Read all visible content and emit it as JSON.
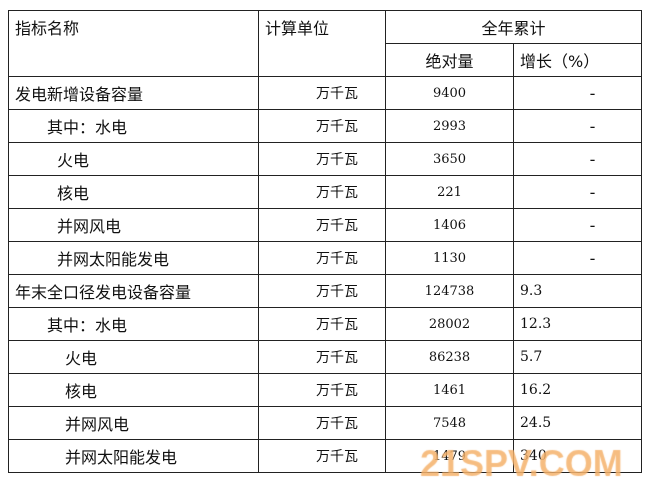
{
  "header": {
    "name": "指标名称",
    "unit": "计算单位",
    "total": "全年累计",
    "absolute": "绝对量",
    "growth": "增长（%）"
  },
  "rows": [
    {
      "name": "发电新增设备容量",
      "indent": 0,
      "unit": "万千瓦",
      "value": "9400",
      "growth": "-"
    },
    {
      "name": "其中：水电",
      "indent": 1,
      "unit": "万千瓦",
      "value": "2993",
      "growth": "-"
    },
    {
      "name": "火电",
      "indent": 2,
      "unit": "万千瓦",
      "value": "3650",
      "growth": "-"
    },
    {
      "name": "核电",
      "indent": 2,
      "unit": "万千瓦",
      "value": "221",
      "growth": "-"
    },
    {
      "name": "并网风电",
      "indent": 2,
      "unit": "万千瓦",
      "value": "1406",
      "growth": "-"
    },
    {
      "name": "并网太阳能发电",
      "indent": 2,
      "unit": "万千瓦",
      "value": "1130",
      "growth": "-"
    },
    {
      "name": "年末全口径发电设备容量",
      "indent": 0,
      "unit": "万千瓦",
      "value": "124738",
      "growth": "9.3"
    },
    {
      "name": "其中：水电",
      "indent": 1,
      "unit": "万千瓦",
      "value": "28002",
      "growth": "12.3"
    },
    {
      "name": "火电",
      "indent": 3,
      "unit": "万千瓦",
      "value": "86238",
      "growth": "5.7"
    },
    {
      "name": "核电",
      "indent": 3,
      "unit": "万千瓦",
      "value": "1461",
      "growth": "16.2"
    },
    {
      "name": "并网风电",
      "indent": 3,
      "unit": "万千瓦",
      "value": "7548",
      "growth": "24.5"
    },
    {
      "name": "并网太阳能发电",
      "indent": 3,
      "unit": "万千瓦",
      "value": "1479",
      "growth": "340"
    }
  ],
  "watermark": "21SPV.COM"
}
